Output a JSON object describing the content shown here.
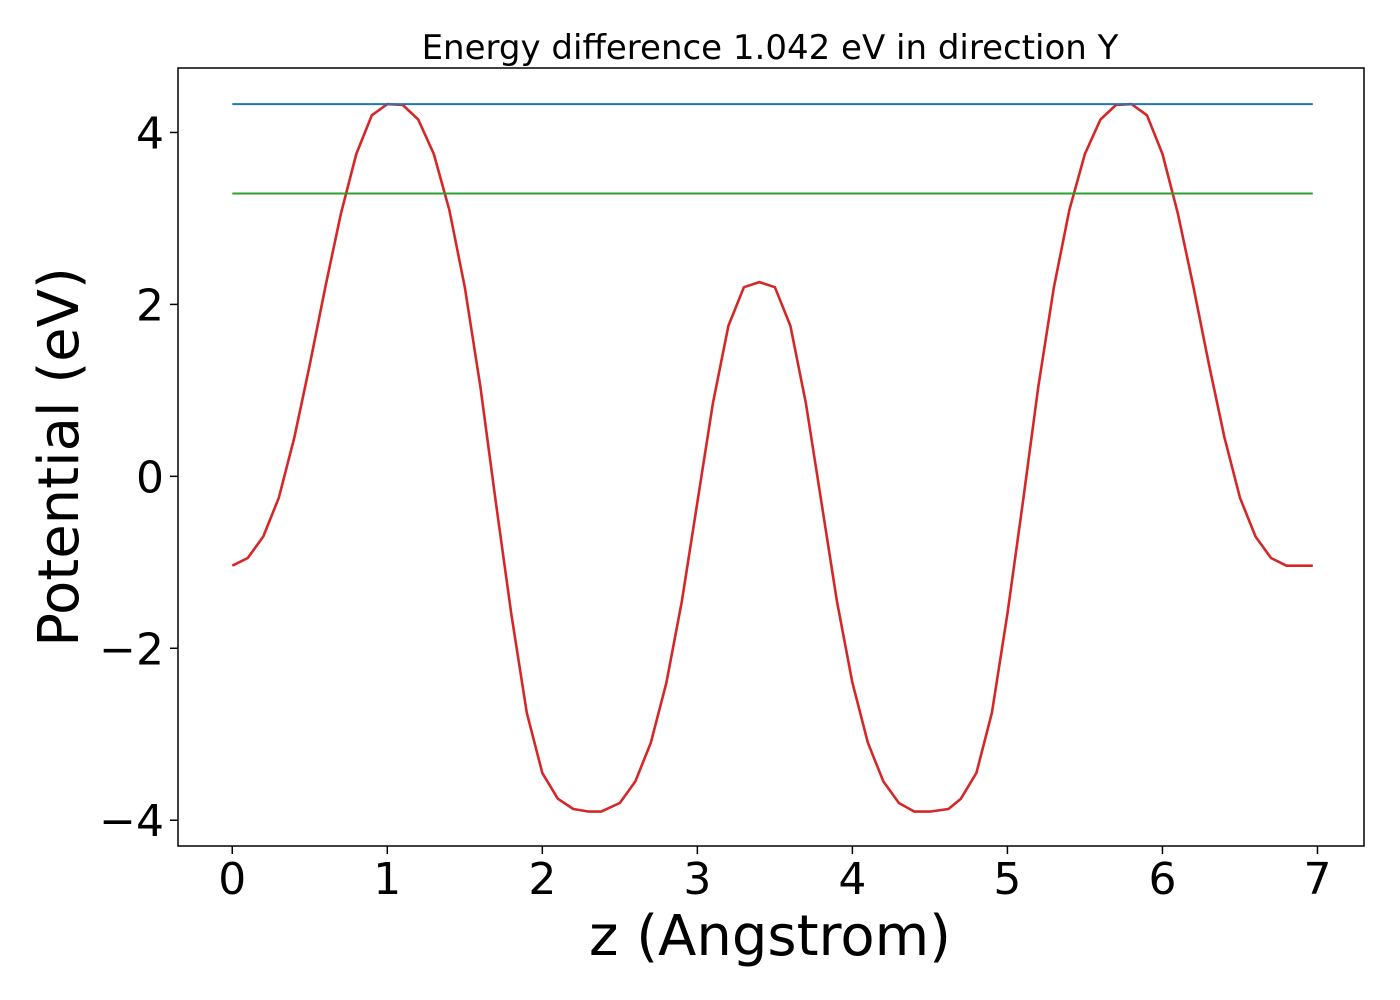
{
  "chart_data": {
    "type": "line",
    "title": "Energy difference 1.042 eV in direction Y",
    "xlabel": "z (Angstrom)",
    "ylabel": "Potential (eV)",
    "xlim": [
      -0.35,
      7.3
    ],
    "ylim": [
      -4.3,
      4.75
    ],
    "xticks": [
      0,
      1,
      2,
      3,
      4,
      5,
      6,
      7
    ],
    "xtick_labels": [
      "0",
      "1",
      "2",
      "3",
      "4",
      "5",
      "6",
      "7"
    ],
    "yticks": [
      -4,
      -2,
      0,
      2,
      4
    ],
    "ytick_labels": [
      "−4",
      "−2",
      "0",
      "2",
      "4"
    ],
    "grid": false,
    "legend": "none",
    "series": [
      {
        "color": "#d62728",
        "x": [
          0.0,
          0.1,
          0.2,
          0.3,
          0.4,
          0.5,
          0.6,
          0.7,
          0.8,
          0.9,
          1.0,
          1.1,
          1.2,
          1.3,
          1.4,
          1.5,
          1.6,
          1.7,
          1.8,
          1.9,
          2.0,
          2.1,
          2.2,
          2.3,
          2.38,
          2.5,
          2.6,
          2.7,
          2.8,
          2.9,
          3.0,
          3.1,
          3.2,
          3.3,
          3.4,
          3.5,
          3.6,
          3.7,
          3.8,
          3.9,
          4.0,
          4.1,
          4.2,
          4.3,
          4.4,
          4.5,
          4.62,
          4.7,
          4.8,
          4.9,
          5.0,
          5.1,
          5.2,
          5.3,
          5.4,
          5.5,
          5.6,
          5.7,
          5.8,
          5.9,
          6.0,
          6.1,
          6.2,
          6.3,
          6.4,
          6.5,
          6.6,
          6.7,
          6.8,
          6.9,
          6.97
        ],
        "y": [
          -1.04,
          -0.95,
          -0.7,
          -0.25,
          0.45,
          1.3,
          2.2,
          3.05,
          3.75,
          4.2,
          4.33,
          4.32,
          4.15,
          3.75,
          3.1,
          2.2,
          1.05,
          -0.3,
          -1.6,
          -2.75,
          -3.45,
          -3.75,
          -3.87,
          -3.9,
          -3.9,
          -3.8,
          -3.55,
          -3.1,
          -2.4,
          -1.45,
          -0.3,
          0.85,
          1.75,
          2.2,
          2.26,
          2.2,
          1.75,
          0.85,
          -0.3,
          -1.45,
          -2.4,
          -3.1,
          -3.55,
          -3.8,
          -3.9,
          -3.9,
          -3.87,
          -3.75,
          -3.45,
          -2.75,
          -1.6,
          -0.3,
          1.05,
          2.2,
          3.1,
          3.75,
          4.15,
          4.32,
          4.33,
          4.2,
          3.75,
          3.05,
          2.2,
          1.3,
          0.45,
          -0.25,
          -0.7,
          -0.95,
          -1.04,
          -1.04,
          -1.04
        ]
      },
      {
        "color": "#1f77b4",
        "x": [
          0.0,
          6.97
        ],
        "y": [
          4.33,
          4.33
        ]
      },
      {
        "color": "#2ca02c",
        "x": [
          0.0,
          6.97
        ],
        "y": [
          3.29,
          3.29
        ]
      }
    ]
  }
}
